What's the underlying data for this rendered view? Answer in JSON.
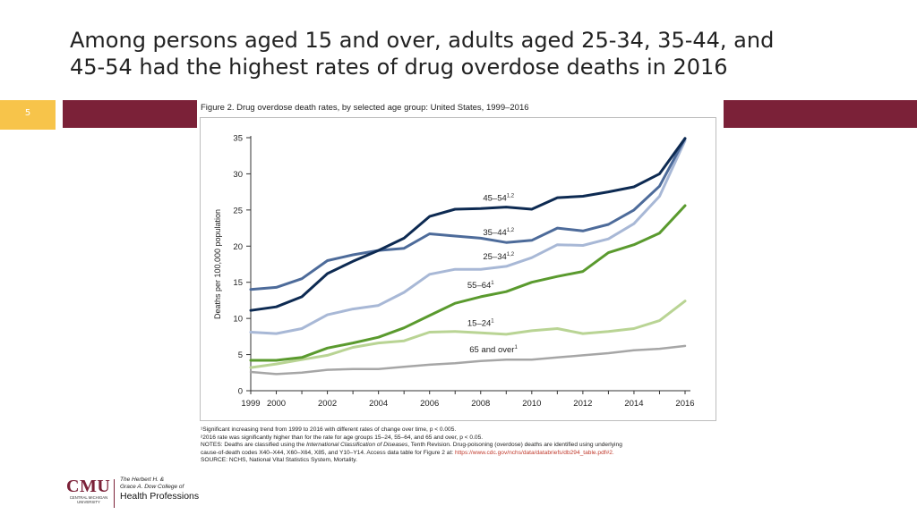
{
  "slide": {
    "title_lines": [
      "Among persons aged 15 and over, adults aged 25-34, 35-44, and",
      "45-54 had the highest rates of drug overdose deaths in 2016"
    ],
    "slide_number": "5",
    "colors": {
      "accent_bar": "#7b2138",
      "number_box": "#f7c44a"
    }
  },
  "figure": {
    "caption": "Figure 2. Drug overdose death rates, by selected age group: United States, 1999–2016",
    "notes": {
      "n1": "¹Significant increasing trend from 1999 to 2016 with different rates of change over time, p < 0.005.",
      "n2": "²2016 rate was significantly higher than for the rate for age groups 15–24, 55–64, and 65 and over, p < 0.05.",
      "n3_a": "NOTES: Deaths are classified using the ",
      "n3_b": "International Classification of Diseases",
      "n3_c": ", Tenth Revision. Drug-poisoning (overdose) deaths are identified using underlying",
      "n4_a": "cause-of-death codes X40–X44, X60–X64, X85, and Y10–Y14. Access data table for Figure 2 at: ",
      "n4_link": "https://www.cdc.gov/nchs/data/databriefs/db294_table.pdf#2.",
      "n5": "SOURCE: NCHS, National Vital Statistics System, Mortality."
    }
  },
  "chart_data": {
    "type": "line",
    "ylabel": "Deaths per 100,000 population",
    "xlabel": "",
    "ylim": [
      0,
      35
    ],
    "yticks": [
      0,
      5,
      10,
      15,
      20,
      25,
      30,
      35
    ],
    "xticks": [
      1999,
      2000,
      2002,
      2004,
      2006,
      2008,
      2010,
      2012,
      2014,
      2016
    ],
    "x": [
      1999,
      2000,
      2001,
      2002,
      2003,
      2004,
      2005,
      2006,
      2007,
      2008,
      2009,
      2010,
      2011,
      2012,
      2013,
      2014,
      2015,
      2016
    ],
    "grid": false,
    "series": [
      {
        "name": "45–54",
        "sup": "1,2",
        "color": "#0d2a52",
        "width": 3,
        "values": [
          11.1,
          11.6,
          13.0,
          16.2,
          17.9,
          19.4,
          21.1,
          24.1,
          25.1,
          25.2,
          25.4,
          25.1,
          26.7,
          26.9,
          27.5,
          28.2,
          30.0,
          34.9
        ]
      },
      {
        "name": "35–44",
        "sup": "1,2",
        "color": "#4d6b9a",
        "width": 3,
        "values": [
          14.0,
          14.3,
          15.5,
          18.0,
          18.8,
          19.4,
          19.7,
          21.7,
          21.4,
          21.1,
          20.5,
          20.8,
          22.5,
          22.1,
          23.0,
          25.0,
          28.3,
          34.9
        ]
      },
      {
        "name": "25–34",
        "sup": "1,2",
        "color": "#a8b8d6",
        "width": 3,
        "values": [
          8.1,
          7.9,
          8.6,
          10.5,
          11.3,
          11.8,
          13.6,
          16.1,
          16.8,
          16.8,
          17.2,
          18.4,
          20.2,
          20.1,
          21.0,
          23.1,
          26.9,
          34.6
        ]
      },
      {
        "name": "55–64",
        "sup": "1",
        "color": "#5a9a2e",
        "width": 3,
        "values": [
          4.2,
          4.2,
          4.6,
          5.9,
          6.6,
          7.4,
          8.7,
          10.4,
          12.1,
          13.0,
          13.7,
          15.0,
          15.8,
          16.5,
          19.1,
          20.2,
          21.8,
          25.6
        ]
      },
      {
        "name": "15–24",
        "sup": "1",
        "color": "#b9d494",
        "width": 3,
        "values": [
          3.2,
          3.7,
          4.3,
          4.9,
          6.0,
          6.6,
          6.9,
          8.1,
          8.2,
          8.0,
          7.8,
          8.3,
          8.6,
          7.9,
          8.2,
          8.6,
          9.7,
          12.4
        ]
      },
      {
        "name": "65 and over",
        "sup": "1",
        "color": "#a6a6a6",
        "width": 2.5,
        "values": [
          2.6,
          2.3,
          2.5,
          2.9,
          3.0,
          3.0,
          3.3,
          3.6,
          3.8,
          4.1,
          4.3,
          4.3,
          4.6,
          4.9,
          5.2,
          5.6,
          5.8,
          6.2
        ]
      }
    ]
  },
  "logo": {
    "brand": "CMU",
    "brand_sub": "CENTRAL MICHIGAN UNIVERSITY",
    "college_line1": "The Herbert H. &",
    "college_line2": "Grace A. Dow College of",
    "college_line3": "Health Professions"
  }
}
